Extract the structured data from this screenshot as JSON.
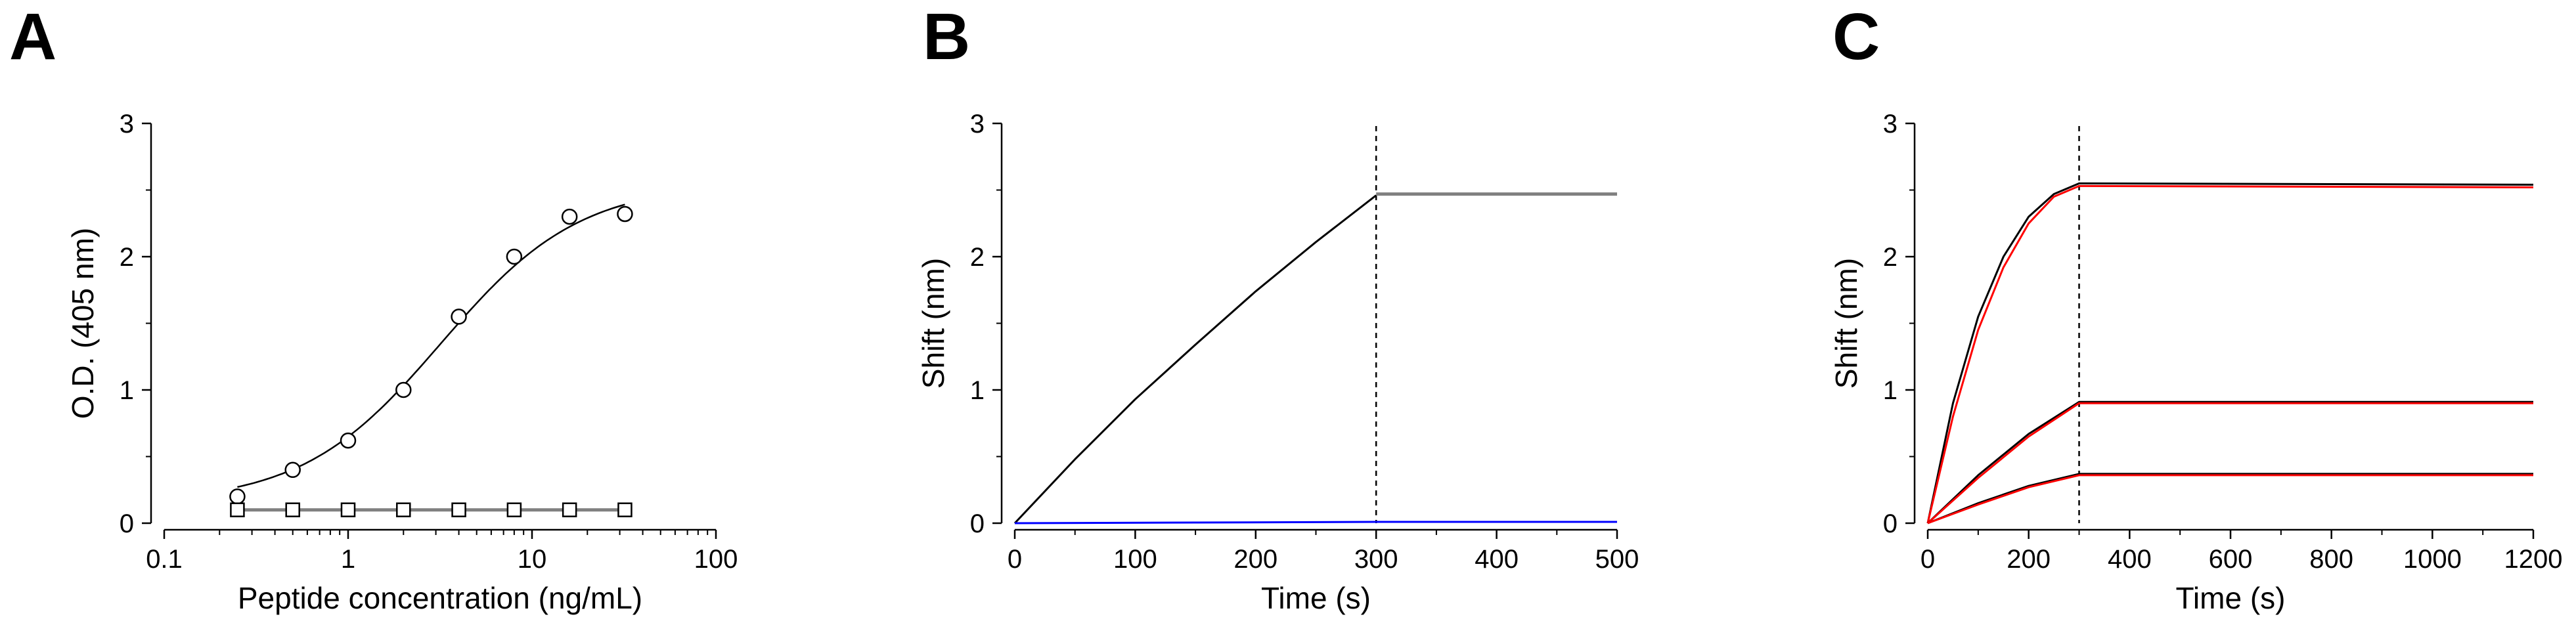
{
  "panels": {
    "A": {
      "letter": "A"
    },
    "B": {
      "letter": "B"
    },
    "C": {
      "letter": "C"
    }
  },
  "chart_data": [
    {
      "panel": "A",
      "type": "scatter",
      "xlabel": "Peptide concentration (ng/mL)",
      "ylabel": "O.D. (405 nm)",
      "xscale": "log",
      "xlim": [
        0.1,
        100
      ],
      "ylim": [
        0,
        3
      ],
      "xticks": [
        0.1,
        1,
        10,
        100
      ],
      "xtick_labels": [
        "0.1",
        "1",
        "10",
        "100"
      ],
      "yticks": [
        0,
        1,
        2,
        3
      ],
      "ytick_labels": [
        "0",
        "1",
        "2",
        "3"
      ],
      "grid": false,
      "series": [
        {
          "marker": "circle",
          "points": [
            [
              0.25,
              0.2
            ],
            [
              0.5,
              0.4
            ],
            [
              1,
              0.62
            ],
            [
              2,
              1.0
            ],
            [
              4,
              1.55
            ],
            [
              8,
              2.0
            ],
            [
              16,
              2.3
            ],
            [
              32,
              2.32
            ]
          ],
          "fit": {
            "model": "four-parameter logistic",
            "bottom": 0.15,
            "top": 2.55,
            "ec50": 3.2,
            "hill": 1.15
          }
        },
        {
          "marker": "square",
          "points": [
            [
              0.25,
              0.1
            ],
            [
              0.5,
              0.1
            ],
            [
              1,
              0.1
            ],
            [
              2,
              0.1
            ],
            [
              4,
              0.1
            ],
            [
              8,
              0.1
            ],
            [
              16,
              0.1
            ],
            [
              32,
              0.1
            ]
          ],
          "line_color": "#808080"
        }
      ]
    },
    {
      "panel": "B",
      "type": "line",
      "xlabel": "Time (s)",
      "ylabel": "Shift (nm)",
      "xlim": [
        0,
        500
      ],
      "ylim": [
        0,
        3
      ],
      "xticks": [
        0,
        100,
        200,
        300,
        400,
        500
      ],
      "xtick_labels": [
        "0",
        "100",
        "200",
        "300",
        "400",
        "500"
      ],
      "yticks": [
        0,
        1,
        2,
        3
      ],
      "ytick_labels": [
        "0",
        "1",
        "2",
        "3"
      ],
      "grid": false,
      "vline_x": 300,
      "series": [
        {
          "color": "#000000",
          "x": [
            0,
            50,
            100,
            150,
            200,
            250,
            300
          ],
          "y": [
            0,
            0.48,
            0.93,
            1.34,
            1.74,
            2.11,
            2.46
          ]
        },
        {
          "color": "#808080",
          "x": [
            300,
            500
          ],
          "y": [
            2.47,
            2.47
          ]
        },
        {
          "color": "#0000ff",
          "x": [
            0,
            300,
            500
          ],
          "y": [
            0,
            0.01,
            0.01
          ]
        }
      ]
    },
    {
      "panel": "C",
      "type": "line",
      "xlabel": "Time (s)",
      "ylabel": "Shift (nm)",
      "xlim": [
        0,
        1200
      ],
      "ylim": [
        0,
        3
      ],
      "xticks": [
        0,
        200,
        400,
        600,
        800,
        1000,
        1200
      ],
      "xtick_labels": [
        "0",
        "200",
        "400",
        "600",
        "800",
        "1000",
        "1200"
      ],
      "yticks": [
        0,
        1,
        2,
        3
      ],
      "ytick_labels": [
        "0",
        "1",
        "2",
        "3"
      ],
      "grid": false,
      "vline_x": 300,
      "series": [
        {
          "color": "#000000",
          "x": [
            0,
            50,
            100,
            150,
            200,
            250,
            300,
            1200
          ],
          "y": [
            0,
            0.9,
            1.55,
            2.0,
            2.3,
            2.47,
            2.55,
            2.54
          ]
        },
        {
          "color": "#ff0000",
          "x": [
            0,
            50,
            100,
            150,
            200,
            250,
            300,
            1200
          ],
          "y": [
            0,
            0.8,
            1.45,
            1.92,
            2.25,
            2.45,
            2.53,
            2.52
          ]
        },
        {
          "color": "#000000",
          "x": [
            0,
            100,
            200,
            300,
            1200
          ],
          "y": [
            0,
            0.36,
            0.67,
            0.91,
            0.91
          ]
        },
        {
          "color": "#ff0000",
          "x": [
            0,
            100,
            200,
            300,
            1200
          ],
          "y": [
            0,
            0.34,
            0.65,
            0.9,
            0.9
          ]
        },
        {
          "color": "#000000",
          "x": [
            0,
            100,
            200,
            300,
            1200
          ],
          "y": [
            0,
            0.15,
            0.28,
            0.37,
            0.37
          ]
        },
        {
          "color": "#ff0000",
          "x": [
            0,
            100,
            200,
            300,
            1200
          ],
          "y": [
            0,
            0.14,
            0.27,
            0.36,
            0.36
          ]
        }
      ]
    }
  ]
}
